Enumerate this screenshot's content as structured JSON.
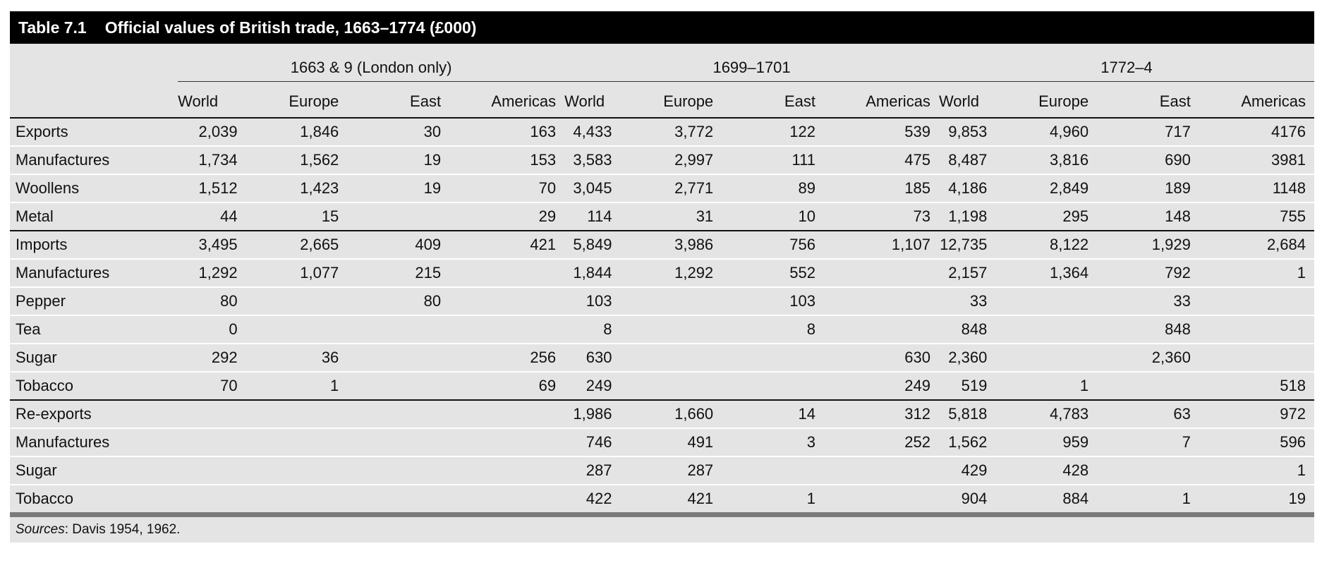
{
  "title": {
    "number": "Table 7.1",
    "text": "Official values of British trade, 1663–1774 (£000)"
  },
  "periods": [
    "1663 & 9 (London only)",
    "1699–1701",
    "1772–4"
  ],
  "columns": [
    "World",
    "Europe",
    "East",
    "Americas"
  ],
  "sections": [
    {
      "rows": [
        {
          "label": "Exports",
          "values": [
            "2,039",
            "1,846",
            "30",
            "163",
            "4,433",
            "3,772",
            "122",
            "539",
            "9,853",
            "4,960",
            "717",
            "4176"
          ]
        },
        {
          "label": "Manufactures",
          "values": [
            "1,734",
            "1,562",
            "19",
            "153",
            "3,583",
            "2,997",
            "111",
            "475",
            "8,487",
            "3,816",
            "690",
            "3981"
          ]
        },
        {
          "label": "Woollens",
          "values": [
            "1,512",
            "1,423",
            "19",
            "70",
            "3,045",
            "2,771",
            "89",
            "185",
            "4,186",
            "2,849",
            "189",
            "1148"
          ]
        },
        {
          "label": "Metal",
          "values": [
            "44",
            "15",
            "",
            "29",
            "114",
            "31",
            "10",
            "73",
            "1,198",
            "295",
            "148",
            "755"
          ]
        }
      ]
    },
    {
      "rows": [
        {
          "label": "Imports",
          "values": [
            "3,495",
            "2,665",
            "409",
            "421",
            "5,849",
            "3,986",
            "756",
            "1,107",
            "12,735",
            "8,122",
            "1,929",
            "2,684"
          ]
        },
        {
          "label": "Manufactures",
          "values": [
            "1,292",
            "1,077",
            "215",
            "",
            "1,844",
            "1,292",
            "552",
            "",
            "2,157",
            "1,364",
            "792",
            "1"
          ]
        },
        {
          "label": "Pepper",
          "values": [
            "80",
            "",
            "80",
            "",
            "103",
            "",
            "103",
            "",
            "33",
            "",
            "33",
            ""
          ]
        },
        {
          "label": "Tea",
          "values": [
            "0",
            "",
            "",
            "",
            "8",
            "",
            "8",
            "",
            "848",
            "",
            "848",
            ""
          ]
        },
        {
          "label": "Sugar",
          "values": [
            "292",
            "36",
            "",
            "256",
            "630",
            "",
            "",
            "630",
            "2,360",
            "",
            "2,360",
            ""
          ]
        },
        {
          "label": "Tobacco",
          "values": [
            "70",
            "1",
            "",
            "69",
            "249",
            "",
            "",
            "249",
            "519",
            "1",
            "",
            "518"
          ]
        }
      ]
    },
    {
      "rows": [
        {
          "label": "Re-exports",
          "values": [
            "",
            "",
            "",
            "",
            "1,986",
            "1,660",
            "14",
            "312",
            "5,818",
            "4,783",
            "63",
            "972"
          ]
        },
        {
          "label": "Manufactures",
          "values": [
            "",
            "",
            "",
            "",
            "746",
            "491",
            "3",
            "252",
            "1,562",
            "959",
            "7",
            "596"
          ]
        },
        {
          "label": "Sugar",
          "values": [
            "",
            "",
            "",
            "",
            "287",
            "287",
            "",
            "",
            "429",
            "428",
            "",
            "1"
          ]
        },
        {
          "label": "Tobacco",
          "values": [
            "",
            "",
            "",
            "",
            "422",
            "421",
            "1",
            "",
            "904",
            "884",
            "1",
            "19"
          ]
        }
      ]
    }
  ],
  "sources": {
    "label": "Sources",
    "text": ": Davis 1954, 1962."
  }
}
